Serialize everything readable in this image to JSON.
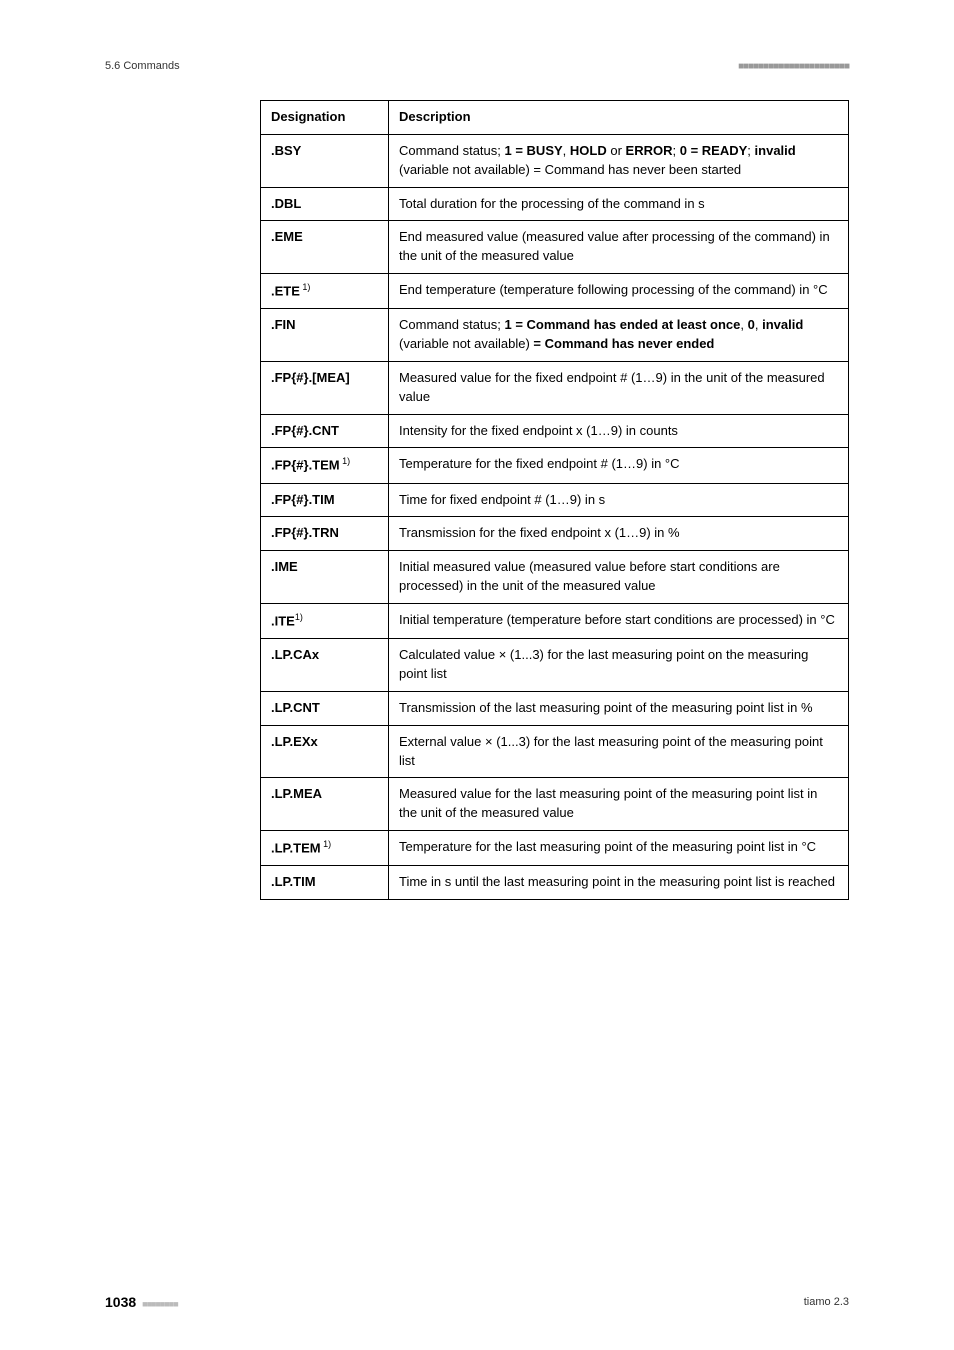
{
  "header": {
    "section": "5.6 Commands",
    "squares": "■■■■■■■■■■■■■■■■■■■■■■"
  },
  "table": {
    "headers": [
      "Designation",
      "Description"
    ],
    "rows": [
      {
        "designation": ".BSY",
        "sup": "",
        "description_html": "Command status; <b>1 = BUSY</b>, <b>HOLD</b> or <b>ERROR</b>; <b>0 = READY</b>; <b>invalid</b> (variable not available) = Command has never been started"
      },
      {
        "designation": ".DBL",
        "sup": "",
        "description_html": "Total duration for the processing of the command in s"
      },
      {
        "designation": ".EME",
        "sup": "",
        "description_html": "End measured value (measured value after processing of the command) in the unit of the measured value"
      },
      {
        "designation": ".ETE",
        "sup": " 1)",
        "description_html": "End temperature (temperature following processing of the command) in °C"
      },
      {
        "designation": ".FIN",
        "sup": "",
        "description_html": "Command status; <b>1 = Command has ended at least once</b>, <b>0</b>, <b>invalid</b> (variable not available) <b>= Command has never ended</b>"
      },
      {
        "designation": ".FP{#}.[MEA]",
        "sup": "",
        "description_html": "Measured value for the fixed endpoint # (1…9) in the unit of the measured value"
      },
      {
        "designation": ".FP{#}.CNT",
        "sup": "",
        "description_html": "Intensity for the fixed endpoint x (1…9) in counts"
      },
      {
        "designation": ".FP{#}.TEM",
        "sup": " 1)",
        "description_html": "Temperature for the fixed endpoint # (1…9) in °C"
      },
      {
        "designation": ".FP{#}.TIM",
        "sup": "",
        "description_html": "Time for fixed endpoint # (1…9) in s"
      },
      {
        "designation": ".FP{#}.TRN",
        "sup": "",
        "description_html": "Transmission for the fixed endpoint x (1…9) in %"
      },
      {
        "designation": ".IME",
        "sup": "",
        "description_html": "Initial measured value (measured value before start conditions are processed) in the unit of the measured value"
      },
      {
        "designation": ".ITE",
        "sup": "1)",
        "description_html": "Initial temperature (temperature before start conditions are processed) in °C"
      },
      {
        "designation": ".LP.CAx",
        "sup": "",
        "description_html": "Calculated value × (1...3) for the last measuring point on the measuring point list"
      },
      {
        "designation": ".LP.CNT",
        "sup": "",
        "description_html": "Transmission of the last measuring point of the measuring point list in %"
      },
      {
        "designation": ".LP.EXx",
        "sup": "",
        "description_html": "External value × (1...3) for the last measuring point of the measuring point list"
      },
      {
        "designation": ".LP.MEA",
        "sup": "",
        "description_html": "Measured value for the last measuring point of the measuring point list in the unit of the measured value"
      },
      {
        "designation": ".LP.TEM",
        "sup": " 1)",
        "description_html": "Temperature for the last measuring point of the measuring point list in °C"
      },
      {
        "designation": ".LP.TIM",
        "sup": "",
        "description_html": "Time in s until the last measuring point in the measuring point list is reached"
      }
    ]
  },
  "footer": {
    "page": "1038",
    "squares": "■■■■■■■■",
    "right": "tiamo 2.3"
  }
}
